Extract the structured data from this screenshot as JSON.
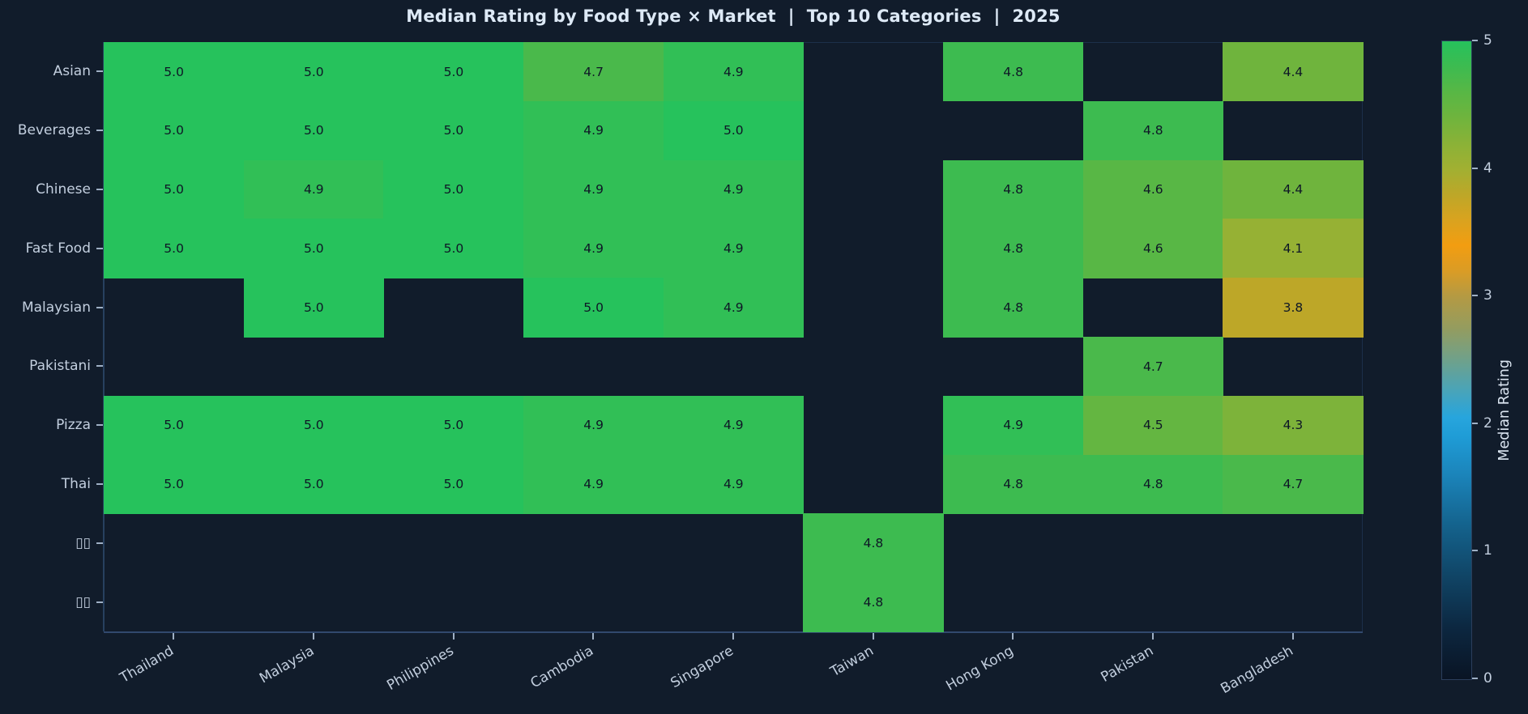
{
  "title": "Median Rating by Food Type × Market  |  Top 10 Categories  |  2025",
  "colors": {
    "background": "#111c2b",
    "title_text": "#dde9f6",
    "tick_label_text": "#c3cfdf",
    "cell_value_text": "#0e1726",
    "axis_line": "#31496e",
    "left_spine": "#27405f",
    "tick_mark": "#9fb0c5"
  },
  "chart_data": {
    "type": "heatmap",
    "title": "Median Rating by Food Type × Market  |  Top 10 Categories  |  2025",
    "x_categories": [
      "Thailand",
      "Malaysia",
      "Philippines",
      "Cambodia",
      "Singapore",
      "Taiwan",
      "Hong Kong",
      "Pakistan",
      "Bangladesh"
    ],
    "y_categories": [
      "Asian",
      "Beverages",
      "Chinese",
      "Fast Food",
      "Malaysian",
      "Pakistani",
      "Pizza",
      "Thai",
      "▯▯",
      "▯▯"
    ],
    "values": [
      [
        5.0,
        5.0,
        5.0,
        4.7,
        4.9,
        null,
        4.8,
        null,
        4.4
      ],
      [
        5.0,
        5.0,
        5.0,
        4.9,
        5.0,
        null,
        null,
        4.8,
        null
      ],
      [
        5.0,
        4.9,
        5.0,
        4.9,
        4.9,
        null,
        4.8,
        4.6,
        4.4
      ],
      [
        5.0,
        5.0,
        5.0,
        4.9,
        4.9,
        null,
        4.8,
        4.6,
        4.1
      ],
      [
        null,
        5.0,
        null,
        5.0,
        4.9,
        null,
        4.8,
        null,
        3.8
      ],
      [
        null,
        null,
        null,
        null,
        null,
        null,
        null,
        4.7,
        null
      ],
      [
        5.0,
        5.0,
        5.0,
        4.9,
        4.9,
        null,
        4.9,
        4.5,
        4.3
      ],
      [
        5.0,
        5.0,
        5.0,
        4.9,
        4.9,
        null,
        4.8,
        4.8,
        4.7
      ],
      [
        null,
        null,
        null,
        null,
        null,
        4.8,
        null,
        null,
        null
      ],
      [
        null,
        null,
        null,
        null,
        null,
        4.8,
        null,
        null,
        null
      ]
    ],
    "value_decimals": 1,
    "grid": false,
    "x_label_rotation_deg": 30,
    "colorbar": {
      "label": "Median Rating",
      "range": [
        0,
        5
      ],
      "ticks": [
        0,
        1,
        2,
        3,
        4,
        5
      ],
      "position": "right",
      "gradient_stops": [
        {
          "v": 0.0,
          "c": "#0a1424"
        },
        {
          "v": 0.4,
          "c": "#0c2740"
        },
        {
          "v": 0.8,
          "c": "#104465"
        },
        {
          "v": 1.2,
          "c": "#14628c"
        },
        {
          "v": 1.6,
          "c": "#1b84ba"
        },
        {
          "v": 1.9,
          "c": "#1f9cd6"
        },
        {
          "v": 2.05,
          "c": "#27a5dd"
        },
        {
          "v": 2.25,
          "c": "#47a4bb"
        },
        {
          "v": 2.5,
          "c": "#6fa18b"
        },
        {
          "v": 2.75,
          "c": "#949c5f"
        },
        {
          "v": 3.0,
          "c": "#b49a43"
        },
        {
          "v": 3.2,
          "c": "#da9c25"
        },
        {
          "v": 3.4,
          "c": "#f29d11"
        },
        {
          "v": 3.6,
          "c": "#d9a31f"
        },
        {
          "v": 3.8,
          "c": "#bda728"
        },
        {
          "v": 4.0,
          "c": "#a1b032"
        },
        {
          "v": 4.2,
          "c": "#8ab237"
        },
        {
          "v": 4.4,
          "c": "#6fb43d"
        },
        {
          "v": 4.6,
          "c": "#58b745"
        },
        {
          "v": 4.8,
          "c": "#3dbb50"
        },
        {
          "v": 5.0,
          "c": "#26c25c"
        }
      ]
    }
  }
}
